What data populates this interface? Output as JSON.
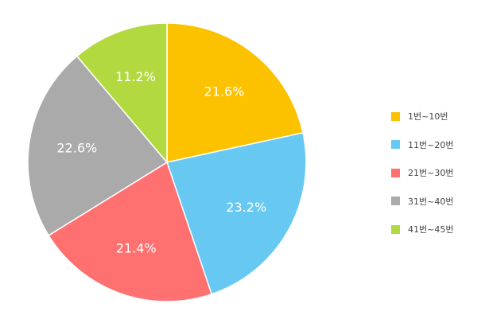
{
  "chart_data": {
    "type": "pie",
    "categories": [
      "1번~10번",
      "11번~20번",
      "21번~30번",
      "31번~40번",
      "41번~45번"
    ],
    "values": [
      21.6,
      23.2,
      21.4,
      22.6,
      11.2
    ],
    "value_labels": [
      "21.6%",
      "23.2%",
      "21.4%",
      "22.6%",
      "11.2%"
    ],
    "colors": [
      "#FCC200",
      "#67C8F2",
      "#FF7171",
      "#AAAAAA",
      "#B3D940"
    ],
    "start": "top",
    "direction": "clockwise",
    "slice_border_color": "#ffffff",
    "legend": {
      "position": "right",
      "entries": [
        "1번~10번",
        "11번~20번",
        "21번~30번",
        "31번~40번",
        "41번~45번"
      ]
    }
  }
}
